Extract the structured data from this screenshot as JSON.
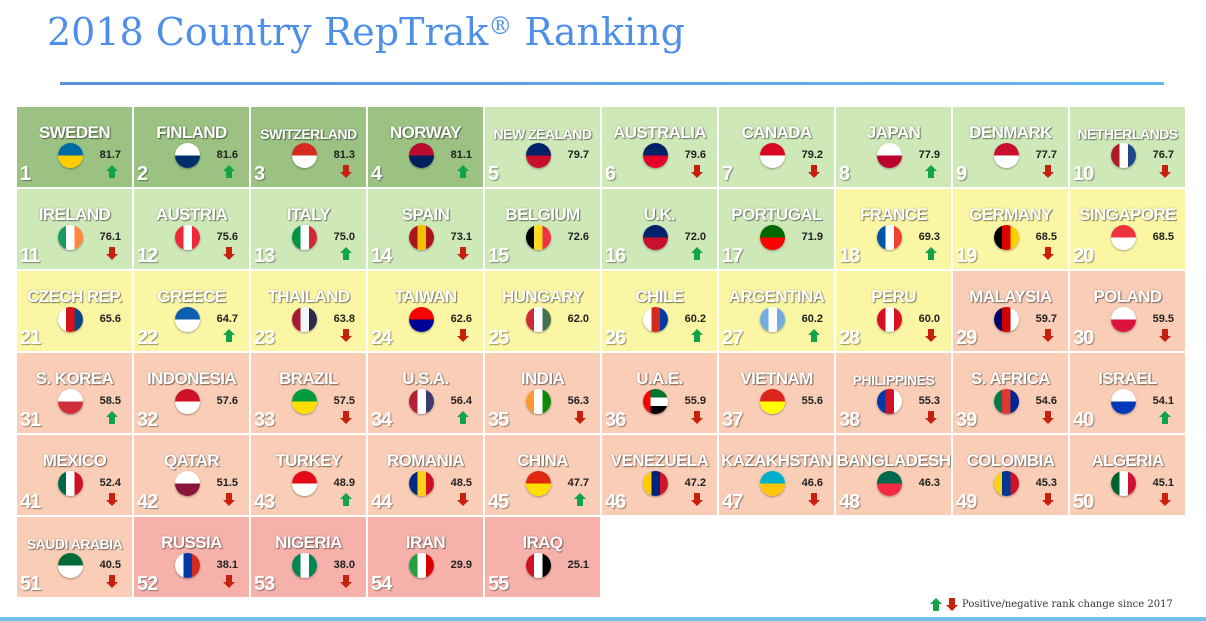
{
  "header": {
    "title": "2018 Country RepTrak",
    "title_mark": "®",
    "title_suffix": " Ranking"
  },
  "legend": {
    "label": "Positive/negative rank change since 2017",
    "up_color": "#12a34a",
    "down_color": "#c8200f"
  },
  "tier_colors": {
    "dark_green": "#9cc283",
    "light_green": "#cfe8b8",
    "yellow": "#fbf6a4",
    "peach": "#f9cdb6",
    "pink": "#f6b1ab"
  },
  "chart_data": {
    "type": "table",
    "title": "2018 Country RepTrak® Ranking",
    "columns": [
      "rank",
      "country",
      "score",
      "change"
    ],
    "legend": "Positive/negative rank change since 2017",
    "rows": [
      {
        "rank": 1,
        "country": "SWEDEN",
        "score": 81.7,
        "change": "up",
        "tier": "dark_green",
        "flag": [
          "#006aa7",
          "#fecc00"
        ]
      },
      {
        "rank": 2,
        "country": "FINLAND",
        "score": 81.6,
        "change": "up",
        "tier": "dark_green",
        "flag": [
          "#ffffff",
          "#002f6c"
        ]
      },
      {
        "rank": 3,
        "country": "SWITZERLAND",
        "score": 81.3,
        "change": "down",
        "tier": "dark_green",
        "flag": [
          "#d52b1e",
          "#ffffff"
        ]
      },
      {
        "rank": 4,
        "country": "NORWAY",
        "score": 81.1,
        "change": "up",
        "tier": "dark_green",
        "flag": [
          "#ba0c2f",
          "#00205b"
        ]
      },
      {
        "rank": 5,
        "country": "NEW ZEALAND",
        "score": 79.7,
        "change": "none",
        "tier": "light_green",
        "flag": [
          "#012169",
          "#c8102e"
        ]
      },
      {
        "rank": 6,
        "country": "AUSTRALIA",
        "score": 79.6,
        "change": "down",
        "tier": "light_green",
        "flag": [
          "#012169",
          "#e4002b"
        ]
      },
      {
        "rank": 7,
        "country": "CANADA",
        "score": 79.2,
        "change": "down",
        "tier": "light_green",
        "flag": [
          "#d80621",
          "#ffffff"
        ]
      },
      {
        "rank": 8,
        "country": "JAPAN",
        "score": 77.9,
        "change": "up",
        "tier": "light_green",
        "flag": [
          "#ffffff",
          "#bc002d"
        ]
      },
      {
        "rank": 9,
        "country": "DENMARK",
        "score": 77.7,
        "change": "down",
        "tier": "light_green",
        "flag": [
          "#c8102e",
          "#ffffff"
        ]
      },
      {
        "rank": 10,
        "country": "NETHERLANDS",
        "score": 76.7,
        "change": "down",
        "tier": "light_green",
        "flag": [
          "#ae1c28",
          "#ffffff",
          "#21468b"
        ]
      },
      {
        "rank": 11,
        "country": "IRELAND",
        "score": 76.1,
        "change": "down",
        "tier": "light_green",
        "flag": [
          "#169b62",
          "#ffffff",
          "#ff883e"
        ]
      },
      {
        "rank": 12,
        "country": "AUSTRIA",
        "score": 75.6,
        "change": "down",
        "tier": "light_green",
        "flag": [
          "#ed2939",
          "#ffffff",
          "#ed2939"
        ]
      },
      {
        "rank": 13,
        "country": "ITALY",
        "score": 75.0,
        "change": "up",
        "tier": "light_green",
        "flag": [
          "#009246",
          "#ffffff",
          "#ce2b37"
        ]
      },
      {
        "rank": 14,
        "country": "SPAIN",
        "score": 73.1,
        "change": "down",
        "tier": "light_green",
        "flag": [
          "#aa151b",
          "#f1bf00",
          "#aa151b"
        ]
      },
      {
        "rank": 15,
        "country": "BELGIUM",
        "score": 72.6,
        "change": "none",
        "tier": "light_green",
        "flag": [
          "#000000",
          "#fdda24",
          "#ef3340"
        ]
      },
      {
        "rank": 16,
        "country": "U.K.",
        "score": 72.0,
        "change": "up",
        "tier": "light_green",
        "flag": [
          "#012169",
          "#c8102e"
        ]
      },
      {
        "rank": 17,
        "country": "PORTUGAL",
        "score": 71.9,
        "change": "none",
        "tier": "light_green",
        "flag": [
          "#006600",
          "#ff0000"
        ]
      },
      {
        "rank": 18,
        "country": "FRANCE",
        "score": 69.3,
        "change": "up",
        "tier": "yellow",
        "flag": [
          "#0055a4",
          "#ffffff",
          "#ef4135"
        ]
      },
      {
        "rank": 19,
        "country": "GERMANY",
        "score": 68.5,
        "change": "down",
        "tier": "yellow",
        "flag": [
          "#000000",
          "#dd0000",
          "#ffce00"
        ]
      },
      {
        "rank": 20,
        "country": "SINGAPORE",
        "score": 68.5,
        "change": "none",
        "tier": "yellow",
        "flag": [
          "#ef3340",
          "#ffffff"
        ]
      },
      {
        "rank": 21,
        "country": "CZECH REP.",
        "score": 65.6,
        "change": "none",
        "tier": "yellow",
        "flag": [
          "#ffffff",
          "#d7141a",
          "#11457e"
        ]
      },
      {
        "rank": 22,
        "country": "GREECE",
        "score": 64.7,
        "change": "up",
        "tier": "yellow",
        "flag": [
          "#0d5eaf",
          "#ffffff"
        ]
      },
      {
        "rank": 23,
        "country": "THAILAND",
        "score": 63.8,
        "change": "down",
        "tier": "yellow",
        "flag": [
          "#a51931",
          "#f4f5f8",
          "#2d2a4a"
        ]
      },
      {
        "rank": 24,
        "country": "TAIWAN",
        "score": 62.6,
        "change": "down",
        "tier": "yellow",
        "flag": [
          "#fe0000",
          "#000095"
        ]
      },
      {
        "rank": 25,
        "country": "HUNGARY",
        "score": 62.0,
        "change": "none",
        "tier": "yellow",
        "flag": [
          "#ce2939",
          "#ffffff",
          "#477050"
        ]
      },
      {
        "rank": 26,
        "country": "CHILE",
        "score": 60.2,
        "change": "up",
        "tier": "yellow",
        "flag": [
          "#ffffff",
          "#d52b1e",
          "#0039a6"
        ]
      },
      {
        "rank": 27,
        "country": "ARGENTINA",
        "score": 60.2,
        "change": "up",
        "tier": "yellow",
        "flag": [
          "#74acdf",
          "#ffffff",
          "#74acdf"
        ]
      },
      {
        "rank": 28,
        "country": "PERU",
        "score": 60.0,
        "change": "down",
        "tier": "yellow",
        "flag": [
          "#d91023",
          "#ffffff",
          "#d91023"
        ]
      },
      {
        "rank": 29,
        "country": "MALAYSIA",
        "score": 59.7,
        "change": "down",
        "tier": "peach",
        "flag": [
          "#010066",
          "#cc0001",
          "#ffffff"
        ]
      },
      {
        "rank": 30,
        "country": "POLAND",
        "score": 59.5,
        "change": "down",
        "tier": "peach",
        "flag": [
          "#ffffff",
          "#dc143c"
        ]
      },
      {
        "rank": 31,
        "country": "S. KOREA",
        "score": 58.5,
        "change": "up",
        "tier": "peach",
        "flag": [
          "#ffffff",
          "#cd2e3a"
        ]
      },
      {
        "rank": 32,
        "country": "INDONESIA",
        "score": 57.6,
        "change": "none",
        "tier": "peach",
        "flag": [
          "#ce1126",
          "#ffffff"
        ]
      },
      {
        "rank": 33,
        "country": "BRAZIL",
        "score": 57.5,
        "change": "down",
        "tier": "peach",
        "flag": [
          "#009c3b",
          "#ffdf00"
        ]
      },
      {
        "rank": 34,
        "country": "U.S.A.",
        "score": 56.4,
        "change": "up",
        "tier": "peach",
        "flag": [
          "#b22234",
          "#ffffff",
          "#3c3b6e"
        ]
      },
      {
        "rank": 35,
        "country": "INDIA",
        "score": 56.3,
        "change": "down",
        "tier": "peach",
        "flag": [
          "#ff9933",
          "#ffffff",
          "#138808"
        ]
      },
      {
        "rank": 36,
        "country": "U.A.E.",
        "score": 55.9,
        "change": "down",
        "tier": "peach",
        "flag": [
          "#ff0000",
          "#00732f",
          "#ffffff",
          "#000000"
        ]
      },
      {
        "rank": 37,
        "country": "VIETNAM",
        "score": 55.6,
        "change": "none",
        "tier": "peach",
        "flag": [
          "#da251d",
          "#ffff00"
        ]
      },
      {
        "rank": 38,
        "country": "PHILIPPINES",
        "score": 55.3,
        "change": "down",
        "tier": "peach",
        "flag": [
          "#0038a8",
          "#ce1126",
          "#ffffff"
        ]
      },
      {
        "rank": 39,
        "country": "S. AFRICA",
        "score": 54.6,
        "change": "down",
        "tier": "peach",
        "flag": [
          "#007a4d",
          "#de3831",
          "#002395"
        ]
      },
      {
        "rank": 40,
        "country": "ISRAEL",
        "score": 54.1,
        "change": "up",
        "tier": "peach",
        "flag": [
          "#ffffff",
          "#0038b8"
        ]
      },
      {
        "rank": 41,
        "country": "MEXICO",
        "score": 52.4,
        "change": "down",
        "tier": "peach",
        "flag": [
          "#006847",
          "#ffffff",
          "#ce1126"
        ]
      },
      {
        "rank": 42,
        "country": "QATAR",
        "score": 51.5,
        "change": "down",
        "tier": "peach",
        "flag": [
          "#ffffff",
          "#8a1538"
        ]
      },
      {
        "rank": 43,
        "country": "TURKEY",
        "score": 48.9,
        "change": "up",
        "tier": "peach",
        "flag": [
          "#e30a17",
          "#ffffff"
        ]
      },
      {
        "rank": 44,
        "country": "ROMANIA",
        "score": 48.5,
        "change": "down",
        "tier": "peach",
        "flag": [
          "#002b7f",
          "#fcd116",
          "#ce1126"
        ]
      },
      {
        "rank": 45,
        "country": "CHINA",
        "score": 47.7,
        "change": "up",
        "tier": "peach",
        "flag": [
          "#de2910",
          "#ffde00"
        ]
      },
      {
        "rank": 46,
        "country": "VENEZUELA",
        "score": 47.2,
        "change": "down",
        "tier": "peach",
        "flag": [
          "#ffcc00",
          "#00247d",
          "#cf142b"
        ]
      },
      {
        "rank": 47,
        "country": "KAZAKHSTAN",
        "score": 46.6,
        "change": "down",
        "tier": "peach",
        "flag": [
          "#00afca",
          "#fec50c"
        ]
      },
      {
        "rank": 48,
        "country": "BANGLADESH",
        "score": 46.3,
        "change": "none",
        "tier": "peach",
        "flag": [
          "#006a4e",
          "#f42a41"
        ]
      },
      {
        "rank": 49,
        "country": "COLOMBIA",
        "score": 45.3,
        "change": "down",
        "tier": "peach",
        "flag": [
          "#fcd116",
          "#003893",
          "#ce1126"
        ]
      },
      {
        "rank": 50,
        "country": "ALGERIA",
        "score": 45.1,
        "change": "down",
        "tier": "peach",
        "flag": [
          "#006233",
          "#ffffff",
          "#d21034"
        ]
      },
      {
        "rank": 51,
        "country": "SAUDI  ARABIA",
        "score": 40.5,
        "change": "down",
        "tier": "peach",
        "flag": [
          "#006c35",
          "#ffffff"
        ]
      },
      {
        "rank": 52,
        "country": "RUSSIA",
        "score": 38.1,
        "change": "down",
        "tier": "pink",
        "flag": [
          "#ffffff",
          "#0039a6",
          "#d52b1e"
        ]
      },
      {
        "rank": 53,
        "country": "NIGERIA",
        "score": 38.0,
        "change": "down",
        "tier": "pink",
        "flag": [
          "#008751",
          "#ffffff",
          "#008751"
        ]
      },
      {
        "rank": 54,
        "country": "IRAN",
        "score": 29.9,
        "change": "none",
        "tier": "pink",
        "flag": [
          "#239f40",
          "#ffffff",
          "#da0000"
        ]
      },
      {
        "rank": 55,
        "country": "IRAQ",
        "score": 25.1,
        "change": "none",
        "tier": "pink",
        "flag": [
          "#ce1126",
          "#ffffff",
          "#000000"
        ]
      }
    ]
  }
}
